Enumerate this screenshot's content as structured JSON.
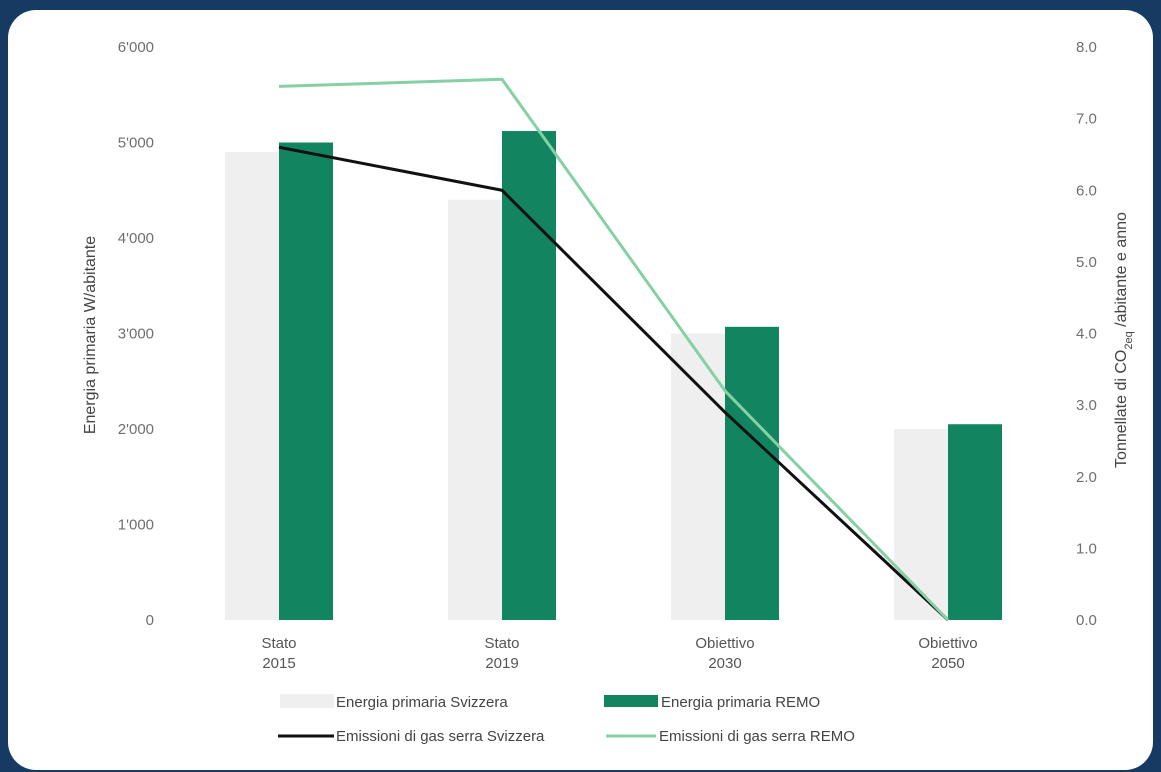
{
  "chart_data": {
    "type": "bar",
    "categories": [
      [
        "Stato",
        "2015"
      ],
      [
        "Stato",
        "2019"
      ],
      [
        "Obiettivo",
        "2030"
      ],
      [
        "Obiettivo",
        "2050"
      ]
    ],
    "y_left": {
      "label": "Energia primaria W/abitante",
      "range": [
        0,
        6000
      ],
      "ticks": [
        "0",
        "1'000",
        "2'000",
        "3'000",
        "4'000",
        "5'000",
        "6'000"
      ]
    },
    "y_right": {
      "label_parts": [
        "Tonnellate di CO",
        "2eq",
        " /abitante e anno"
      ],
      "range": [
        0,
        8
      ],
      "ticks": [
        "0.0",
        "1.0",
        "2.0",
        "3.0",
        "4.0",
        "5.0",
        "6.0",
        "7.0",
        "8.0"
      ]
    },
    "series": [
      {
        "name": "Energia primaria Svizzera",
        "kind": "bar",
        "axis": "left",
        "color": "#efefef",
        "values": [
          4900,
          4400,
          3000,
          2000
        ]
      },
      {
        "name": "Energia primaria REMO",
        "kind": "bar",
        "axis": "left",
        "color": "#12845f",
        "values": [
          5000,
          5120,
          3070,
          2050
        ]
      },
      {
        "name": "Emissioni di gas serra Svizzera",
        "kind": "line",
        "axis": "right",
        "color": "#111111",
        "values": [
          6.6,
          6.0,
          2.9,
          0.0
        ]
      },
      {
        "name": "Emissioni di gas serra REMO",
        "kind": "line",
        "axis": "right",
        "color": "#86d0a6",
        "values": [
          7.45,
          7.55,
          3.2,
          0.0
        ]
      }
    ],
    "legend": {
      "position": "bottom",
      "rows": [
        [
          "Energia primaria Svizzera",
          "Energia primaria REMO"
        ],
        [
          "Emissioni di gas serra Svizzera",
          "Emissioni di gas serra REMO"
        ]
      ]
    },
    "grid": false
  }
}
